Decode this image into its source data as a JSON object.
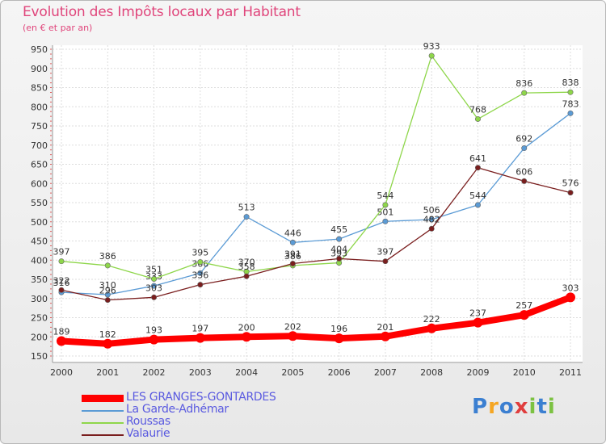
{
  "chart_data": {
    "type": "line",
    "title": "Evolution des Impôts locaux par Habitant",
    "subtitle": "(en € et par an)",
    "x": [
      "2000",
      "2001",
      "2002",
      "2003",
      "2004",
      "2005",
      "2006",
      "2007",
      "2008",
      "2009",
      "2010",
      "2011"
    ],
    "ylim": [
      150,
      950
    ],
    "yticks": [
      150,
      200,
      250,
      300,
      350,
      400,
      450,
      500,
      550,
      600,
      650,
      700,
      750,
      800,
      850,
      900,
      950
    ],
    "grid": true,
    "legend_position": "bottom-left",
    "series": [
      {
        "name": "LES GRANGES-GONTARDES",
        "color": "#ff0000",
        "width": 8,
        "values": [
          189,
          182,
          193,
          197,
          200,
          202,
          196,
          201,
          222,
          237,
          257,
          303
        ]
      },
      {
        "name": "La Garde-Adhémar",
        "color": "#5b9bd5",
        "width": 1.3,
        "values": [
          316,
          310,
          333,
          366,
          513,
          446,
          455,
          501,
          506,
          544,
          692,
          783
        ]
      },
      {
        "name": "Roussas",
        "color": "#8ed64a",
        "width": 1.3,
        "values": [
          397,
          386,
          351,
          395,
          370,
          386,
          393,
          544,
          933,
          768,
          836,
          838
        ]
      },
      {
        "name": "Valaurie",
        "color": "#7a1e1e",
        "width": 1.3,
        "values": [
          322,
          296,
          303,
          336,
          358,
          391,
          404,
          397,
          482,
          641,
          606,
          576
        ]
      }
    ]
  },
  "logo": {
    "letters": [
      "P",
      "r",
      "o",
      "x",
      "i",
      "t",
      "i"
    ],
    "colors": [
      "#3b7fd1",
      "#f5a623",
      "#3b7fd1",
      "#e03e3e",
      "#7cc242",
      "#3b7fd1",
      "#7cc242"
    ]
  }
}
